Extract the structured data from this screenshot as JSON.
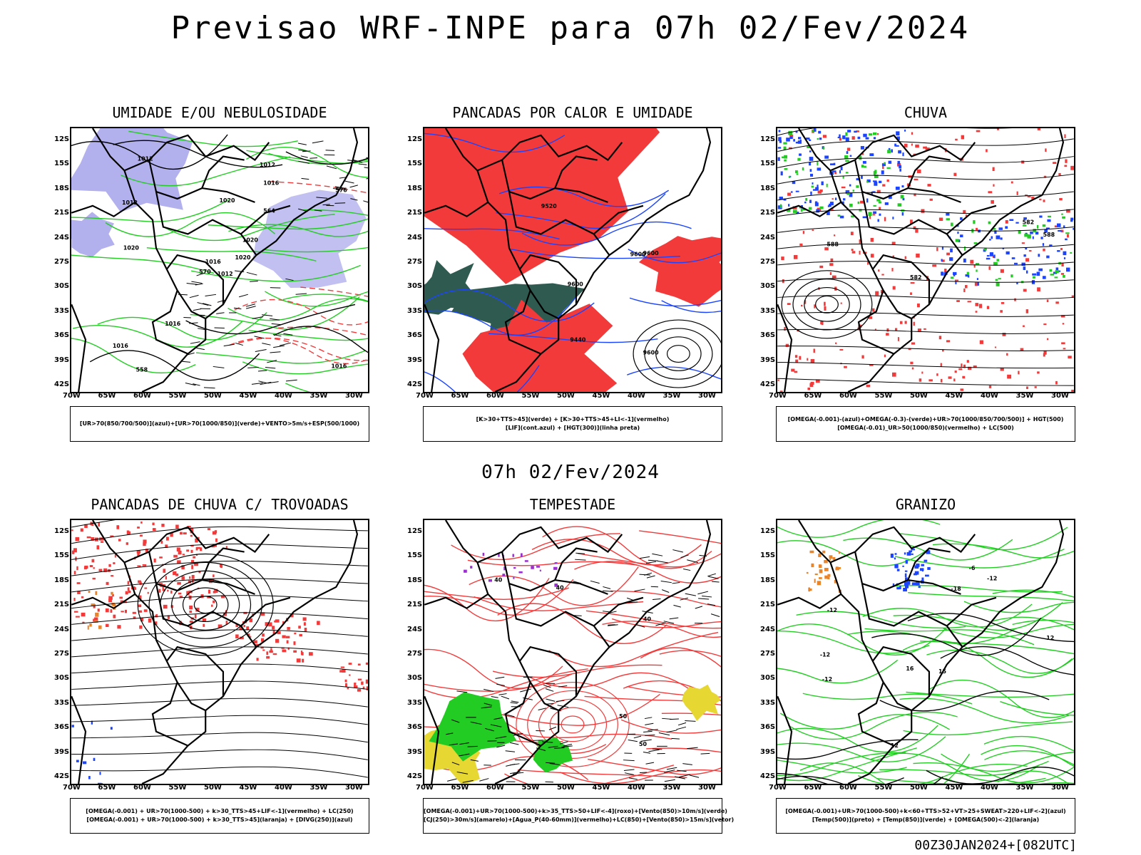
{
  "header": {
    "title": "Previsao WRF-INPE  para 07h 02/Fev/2024"
  },
  "mid_title": "07h 02/Fev/2024",
  "footer": "00Z30JAN2024+[082UTC]",
  "axes": {
    "lat_labels": [
      "12S",
      "15S",
      "18S",
      "21S",
      "24S",
      "27S",
      "30S",
      "33S",
      "36S",
      "39S",
      "42S"
    ],
    "lon_labels": [
      "70W",
      "65W",
      "60W",
      "55W",
      "50W",
      "45W",
      "40W",
      "35W",
      "30W"
    ]
  },
  "panels": [
    {
      "id": "umidade",
      "title": "UMIDADE E/OU NEBULOSIDADE",
      "legend": [
        "[UR>70(850/700/500)](azul)+[UR>70(1000/850)](verde)+VENTO>5m/s+ESP(500/1000)"
      ],
      "contour_labels": [
        "1012",
        "1012",
        "1016",
        "1016",
        "1020",
        "1016",
        "1012",
        "1020",
        "1016",
        "1020",
        "1012",
        "1016",
        "1020",
        "576",
        "570",
        "564",
        "558"
      ]
    },
    {
      "id": "pancadas-calor",
      "title": "PANCADAS POR CALOR E UMIDADE",
      "legend": [
        "[K>30+TTS>45](verde) + [K>30+TTS>45+LI<-1](vermelho)",
        "[LIF](cont.azul) + [HGT(300)](linha preta)"
      ],
      "contour_labels": [
        "9600",
        "9600",
        "9600",
        "9600",
        "9440",
        "9520"
      ]
    },
    {
      "id": "chuva",
      "title": "CHUVA",
      "legend": [
        "[OMEGA(-0.001)-(azul)+OMEGA(-0.3)-(verde)+UR>70(1000/850/700/500)] + HGT(500)",
        "[OMEGA(-0.01)_UR>50(1000/850)(vermelho) + LC(500)"
      ],
      "contour_labels": [
        "588",
        "582",
        "588",
        "582"
      ]
    },
    {
      "id": "trovoadas",
      "title": "PANCADAS DE CHUVA C/ TROVOADAS",
      "legend": [
        "[OMEGA(-0.001) + UR>70(1000-500) + k>30_TTS>45+LIF<-1](vermelho) + LC(250)",
        "[OMEGA(-0.001) + UR>70(1000-500) + k>30_TTS>45](laranja) + [DIVG(250)](azul)"
      ],
      "contour_labels": []
    },
    {
      "id": "tempestade",
      "title": "TEMPESTADE",
      "legend": [
        "[OMEGA(-0.001)+UR>70(1000-500)+k>35_TTS>50+LIF<-4](roxo)+[Vento(850)>10m/s](verde)",
        "[CJ(250)>30m/s](amarelo)+[Agua_P(40-60mm)](vermelho)+LC(850)+[Vento(850)>15m/s](vetor)"
      ],
      "contour_labels": [
        "40",
        "50",
        "40",
        "50",
        "40"
      ]
    },
    {
      "id": "granizo",
      "title": "GRANIZO",
      "legend": [
        "[OMEGA(-0.001)+UR>70(1000-500)+k<60+TTS>52+VT>25+SWEAT>220+LIF<-2](azul)",
        "[Temp(500)](preto) + [Temp(850)](verde) + [OMEGA(500)<-2](laranja)"
      ],
      "contour_labels": [
        "-6",
        "16",
        "-12",
        "-12",
        "-12",
        "-12",
        "-18",
        "12",
        "12",
        "15"
      ]
    }
  ],
  "colors": {
    "red": "#f23a3a",
    "green": "#22cc22",
    "blue": "#1a44ff",
    "lavender": "#b3b0ee",
    "darkgreen": "#2f5a50",
    "yellow": "#e6d733",
    "purple": "#9a2fcf",
    "orange": "#e8842a"
  }
}
